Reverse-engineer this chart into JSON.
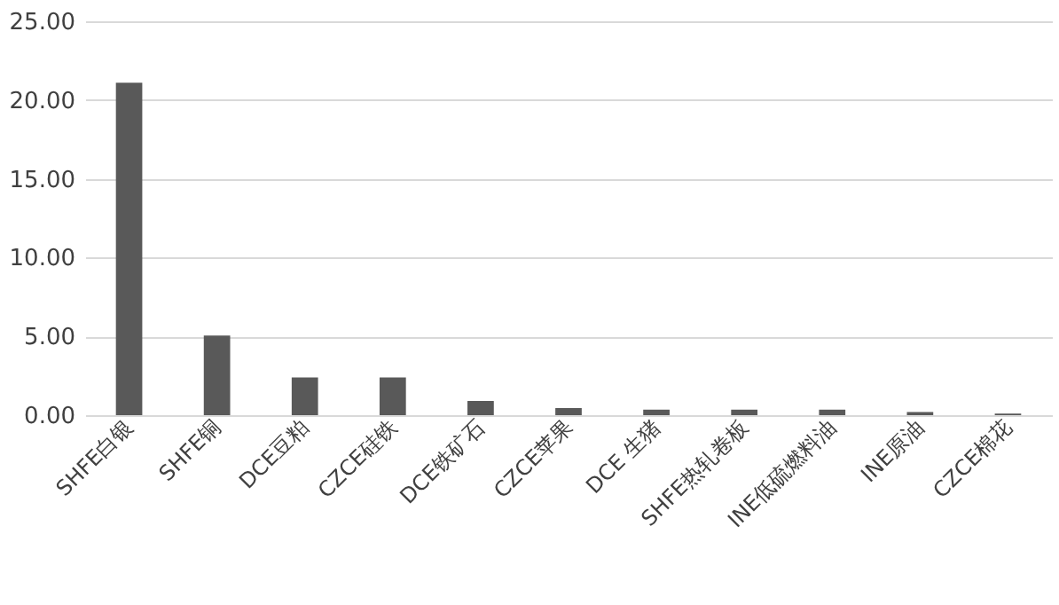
{
  "chart_data": {
    "type": "bar",
    "categories": [
      "SHFE白银",
      "SHFE铜",
      "DCE豆粕",
      "CZCE硅铁",
      "DCE铁矿石",
      "CZCE苹果",
      "DCE 生猪",
      "SHFE热轧卷板",
      "INE低硫燃料油",
      "INE原油",
      "CZCE棉花"
    ],
    "values": [
      21.1,
      5.05,
      2.4,
      2.4,
      0.9,
      0.45,
      0.35,
      0.35,
      0.35,
      0.2,
      0.1
    ],
    "color": "#595959",
    "ylim": [
      0,
      25
    ],
    "yticks": [
      {
        "value": 0,
        "label": "0.00"
      },
      {
        "value": 5,
        "label": "5.00"
      },
      {
        "value": 10,
        "label": "10.00"
      },
      {
        "value": 15,
        "label": "15.00"
      },
      {
        "value": 20,
        "label": "20.00"
      },
      {
        "value": 25,
        "label": "25.00"
      }
    ],
    "grid": "y"
  }
}
